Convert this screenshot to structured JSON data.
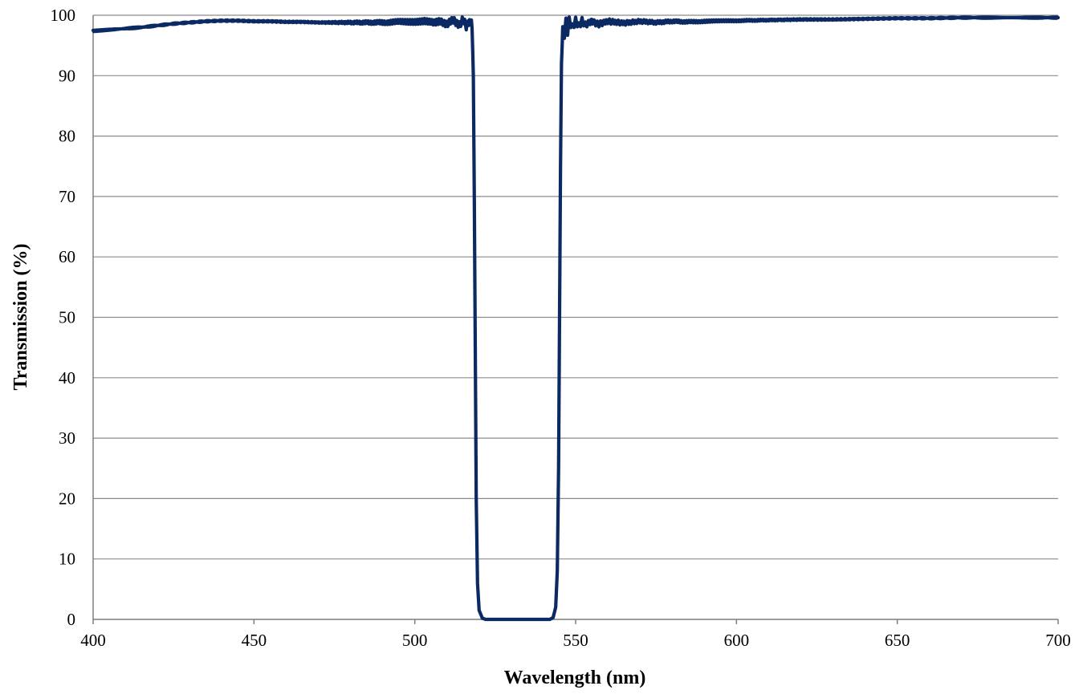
{
  "colors": {
    "series": "#0b2a63",
    "gridline": "#8c8c8c",
    "axis": "#7f7f7f",
    "background": "#ffffff"
  },
  "chart_data": {
    "type": "line",
    "title": "",
    "xlabel": "Wavelength (nm)",
    "ylabel": "Transmission (%)",
    "xlim": [
      400,
      700
    ],
    "ylim": [
      0,
      100
    ],
    "xticks": [
      400,
      450,
      500,
      550,
      600,
      650,
      700
    ],
    "yticks": [
      0,
      10,
      20,
      30,
      40,
      50,
      60,
      70,
      80,
      90,
      100
    ],
    "grid": "horizontal",
    "legend": "none",
    "series": [
      {
        "points": [
          [
            400,
            97.4
          ],
          [
            405,
            97.6
          ],
          [
            410,
            97.8
          ],
          [
            415,
            98.0
          ],
          [
            420,
            98.3
          ],
          [
            425,
            98.6
          ],
          [
            430,
            98.8
          ],
          [
            435,
            99.0
          ],
          [
            440,
            99.1
          ],
          [
            445,
            99.1
          ],
          [
            450,
            99.0
          ],
          [
            455,
            99.0
          ],
          [
            460,
            98.9
          ],
          [
            465,
            98.9
          ],
          [
            470,
            98.8
          ],
          [
            475,
            98.8
          ],
          [
            480,
            98.8
          ],
          [
            485,
            98.8
          ],
          [
            490,
            98.8
          ],
          [
            495,
            98.9
          ],
          [
            500,
            98.9
          ],
          [
            503,
            99.0
          ],
          [
            506,
            98.7
          ],
          [
            508,
            99.1
          ],
          [
            510,
            98.5
          ],
          [
            512,
            99.2
          ],
          [
            514,
            98.4
          ],
          [
            515,
            99.3
          ],
          [
            516,
            98.2
          ],
          [
            517,
            99.2
          ],
          [
            517.8,
            98.5
          ],
          [
            518.2,
            90.0
          ],
          [
            518.5,
            70.0
          ],
          [
            518.8,
            45.0
          ],
          [
            519.1,
            20.0
          ],
          [
            519.5,
            6.0
          ],
          [
            520,
            1.5
          ],
          [
            521,
            0.2
          ],
          [
            522,
            0.0
          ],
          [
            530,
            0.0
          ],
          [
            540,
            0.0
          ],
          [
            542,
            0.0
          ],
          [
            543,
            0.3
          ],
          [
            543.8,
            2.0
          ],
          [
            544.3,
            8.0
          ],
          [
            544.7,
            25.0
          ],
          [
            545,
            50.0
          ],
          [
            545.3,
            75.0
          ],
          [
            545.6,
            92.0
          ],
          [
            546,
            97.5
          ],
          [
            546.5,
            96.8
          ],
          [
            547,
            98.9
          ],
          [
            547.5,
            97.3
          ],
          [
            548,
            99.1
          ],
          [
            549,
            98.0
          ],
          [
            550,
            99.1
          ],
          [
            551,
            98.2
          ],
          [
            552,
            99.1
          ],
          [
            553,
            98.4
          ],
          [
            555,
            99.0
          ],
          [
            557,
            98.5
          ],
          [
            560,
            99.0
          ],
          [
            565,
            98.7
          ],
          [
            570,
            99.0
          ],
          [
            575,
            98.8
          ],
          [
            580,
            99.0
          ],
          [
            585,
            98.9
          ],
          [
            590,
            99.0
          ],
          [
            600,
            99.1
          ],
          [
            610,
            99.2
          ],
          [
            620,
            99.3
          ],
          [
            630,
            99.3
          ],
          [
            640,
            99.4
          ],
          [
            650,
            99.5
          ],
          [
            660,
            99.5
          ],
          [
            670,
            99.6
          ],
          [
            680,
            99.6
          ],
          [
            690,
            99.6
          ],
          [
            700,
            99.6
          ]
        ]
      }
    ]
  }
}
